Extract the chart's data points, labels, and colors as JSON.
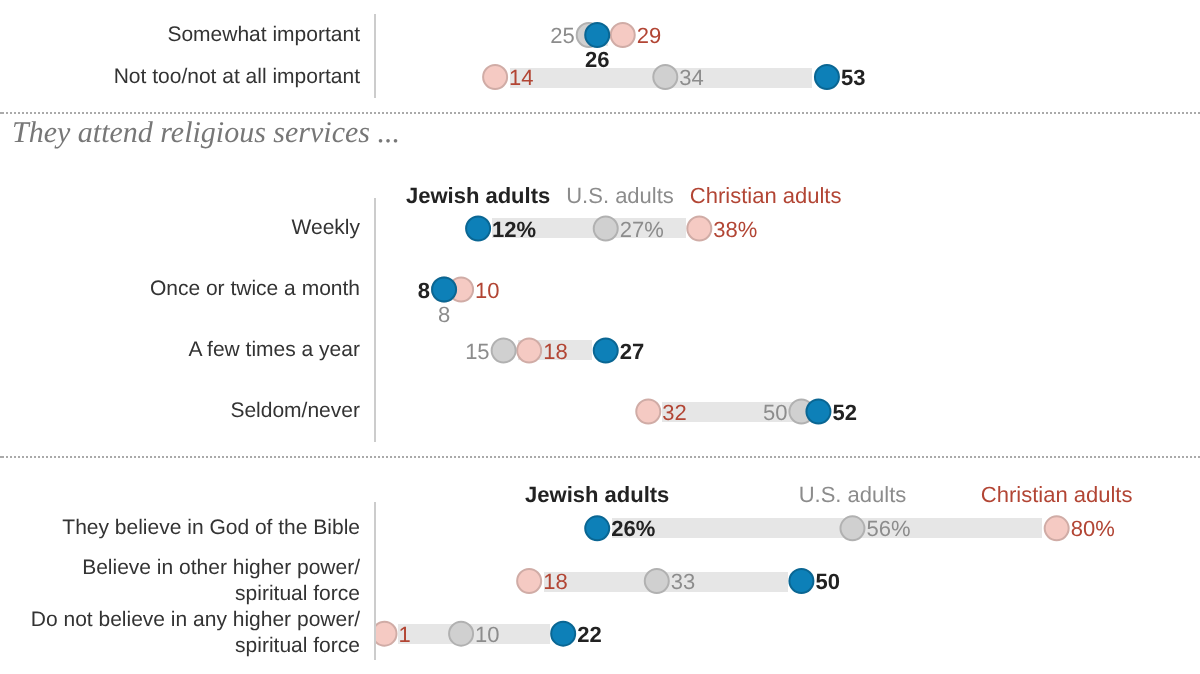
{
  "chart_data": [
    {
      "type": "scatter",
      "orientation": "horizontal",
      "categories": [
        "Somewhat important",
        "Not too/not at all important"
      ],
      "tick_labels": "y",
      "series": [
        {
          "color": "#0d80b8",
          "values": [
            26,
            53
          ],
          "value_labels": [
            "26",
            "53"
          ]
        },
        {
          "color": "#d0d0d0",
          "values": [
            25,
            34
          ],
          "value_labels": [
            "25",
            "34"
          ]
        },
        {
          "color": "#f5cac3",
          "values": [
            29,
            14
          ],
          "value_labels": [
            "29",
            "14"
          ]
        }
      ]
    },
    {
      "type": "scatter",
      "orientation": "horizontal",
      "title": "They attend religious services ...",
      "categories": [
        "Weekly",
        "Once or twice a month",
        "A few times a year",
        "Seldom/never"
      ],
      "tick_labels": "y",
      "legend": "top",
      "series": [
        {
          "name": "Jewish adults",
          "color": "#0d80b8",
          "values": [
            12,
            8,
            27,
            52
          ],
          "value_labels": [
            "12%",
            "8",
            "27",
            "52"
          ]
        },
        {
          "name": "U.S. adults",
          "color": "#d0d0d0",
          "values": [
            27,
            8,
            15,
            50
          ],
          "value_labels": [
            "27%",
            "8",
            "15",
            "50"
          ]
        },
        {
          "name": "Christian adults",
          "color": "#f5cac3",
          "values": [
            38,
            10,
            18,
            32
          ],
          "value_labels": [
            "38%",
            "10",
            "18",
            "32"
          ]
        }
      ]
    },
    {
      "type": "scatter",
      "orientation": "horizontal",
      "categories": [
        "They believe in God of the Bible",
        "Believe in other higher power/ spiritual force",
        "Do not believe in any higher power/ spiritual force"
      ],
      "tick_labels": "y",
      "legend": "top",
      "series": [
        {
          "name": "Jewish adults",
          "color": "#0d80b8",
          "values": [
            26,
            50,
            22
          ],
          "value_labels": [
            "26%",
            "50",
            "22"
          ]
        },
        {
          "name": "U.S. adults",
          "color": "#d0d0d0",
          "values": [
            56,
            33,
            10
          ],
          "value_labels": [
            "56%",
            "33",
            "10"
          ]
        },
        {
          "name": "Christian adults",
          "color": "#f5cac3",
          "values": [
            80,
            18,
            1
          ],
          "value_labels": [
            "80%",
            "18",
            "1"
          ]
        }
      ]
    }
  ]
}
